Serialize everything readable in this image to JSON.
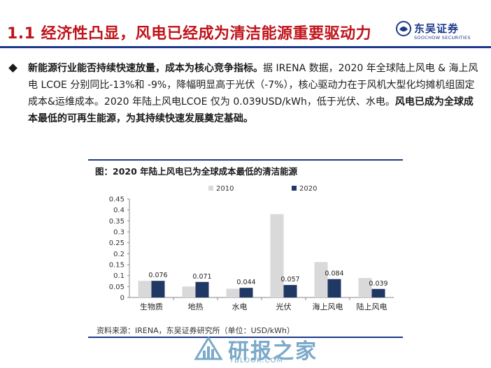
{
  "header": {
    "title": "1.1 经济性凸显，风电已经成为清洁能源重要驱动力",
    "brand_name": "东吴证券",
    "brand_en": "SOOCHOW SECURITIES",
    "brand_color": "#1d3a8a",
    "title_color": "#c0141b"
  },
  "bullet": {
    "bold_lead": "新能源行业能否持续快速放量，成本为核心竞争指标。",
    "body": "据 IRENA 数据，2020 年全球陆上风电 & 海上风电 LCOE 分别同比-13%和 -9%，降幅明显高于光伏（-7%），核心驱动力在于风机大型化均摊机组固定成本&运维成本。2020 年陆上风电LCOE 仅为 0.039USD/kWh，低于光伏、水电。",
    "bold_tail": "风电已成为全球成本最低的可再生能源，为其持续快速发展奠定基础。"
  },
  "chart_data": {
    "type": "bar",
    "title": "图：2020 年陆上风电已为全球成本最低的清洁能源",
    "categories": [
      "生物质",
      "地热",
      "水电",
      "光伏",
      "海上风电",
      "陆上风电"
    ],
    "series": [
      {
        "name": "2010",
        "values": [
          0.076,
          0.05,
          0.04,
          0.381,
          0.162,
          0.089
        ],
        "color": "#d9d9d9"
      },
      {
        "name": "2020",
        "values": [
          0.076,
          0.071,
          0.044,
          0.057,
          0.084,
          0.039
        ],
        "color": "#1f3864"
      }
    ],
    "data_labels_series": "2020",
    "data_labels": [
      "0.076",
      "0.071",
      "0.044",
      "0.057",
      "0.084",
      "0.039"
    ],
    "yticks": [
      "0",
      "0.05",
      "0.1",
      "0.15",
      "0.2",
      "0.25",
      "0.3",
      "0.35",
      "0.4",
      "0.45"
    ],
    "ylim": [
      0,
      0.45
    ],
    "legend_position": "top",
    "grid": false
  },
  "source": "资料来源：IRENA，东吴证券研究所（单位：USD/kWh）",
  "watermark": {
    "text": "研报之家",
    "url": "YBLOOK.COM"
  }
}
